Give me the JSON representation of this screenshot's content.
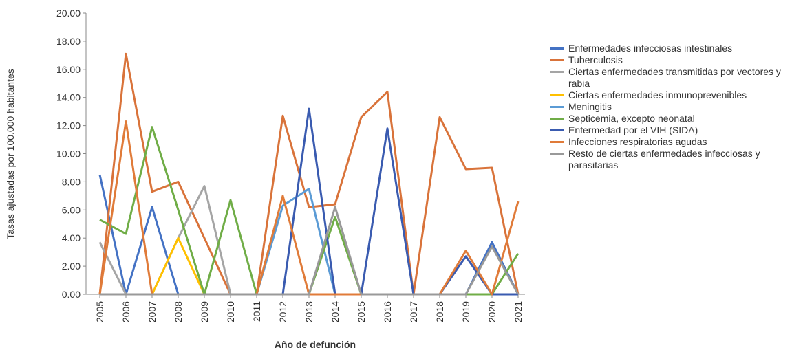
{
  "chart_data": {
    "type": "line",
    "x_label": "Año de defunción",
    "y_label": "Tasas ajustadas por 100.000 habitantes",
    "categories": [
      "2005",
      "2006",
      "2007",
      "2008",
      "2009",
      "2010",
      "2011",
      "2012",
      "2013",
      "2014",
      "2015",
      "2016",
      "2017",
      "2018",
      "2019",
      "2020",
      "2021"
    ],
    "ylim": [
      0,
      20
    ],
    "yticks": [
      {
        "value": 0,
        "label": "0.00"
      },
      {
        "value": 2,
        "label": "2.00"
      },
      {
        "value": 4,
        "label": "4.00"
      },
      {
        "value": 6,
        "label": "6.00"
      },
      {
        "value": 8,
        "label": "8.00"
      },
      {
        "value": 10,
        "label": "10.00"
      },
      {
        "value": 12,
        "label": "12.00"
      },
      {
        "value": 14,
        "label": "14.00"
      },
      {
        "value": 16,
        "label": "16.00"
      },
      {
        "value": 18,
        "label": "18.00"
      },
      {
        "value": 20,
        "label": "20.00"
      }
    ],
    "series": [
      {
        "name": "Enfermedades infecciosas intestinales",
        "color": "#4472c4",
        "values": [
          8.5,
          0,
          6.2,
          0,
          0,
          0,
          0,
          0,
          0,
          0,
          0,
          0,
          0,
          0,
          0,
          3.7,
          0
        ]
      },
      {
        "name": "Tuberculosis",
        "color": "#d9733a",
        "values": [
          0,
          17.1,
          7.3,
          8.0,
          4.0,
          0,
          0,
          12.7,
          6.2,
          6.4,
          12.6,
          14.4,
          0,
          12.6,
          8.9,
          9.0,
          0
        ]
      },
      {
        "name": "Ciertas enfermedades transmitidas por vectores y rabia",
        "color": "#a5a5a5",
        "values": [
          3.7,
          0,
          0,
          4.0,
          7.7,
          0,
          0,
          0,
          0,
          0,
          0,
          0,
          0,
          0,
          0,
          0,
          0
        ]
      },
      {
        "name": "Ciertas enfermedades inmunoprevenibles",
        "color": "#ffc000",
        "values": [
          0,
          0,
          0,
          4.0,
          0,
          0,
          0,
          0,
          0,
          0,
          0,
          0,
          0,
          0,
          0,
          0,
          0
        ]
      },
      {
        "name": "Meningitis",
        "color": "#5b9bd5",
        "values": [
          0,
          0,
          0,
          0,
          0,
          0,
          0,
          6.3,
          7.5,
          0,
          0,
          0,
          0,
          0,
          0,
          0,
          0
        ]
      },
      {
        "name": "Septicemia, excepto neonatal",
        "color": "#70ad47",
        "values": [
          5.3,
          4.3,
          11.9,
          6.0,
          0,
          6.7,
          0,
          0,
          0,
          5.5,
          0,
          0,
          0,
          0,
          0,
          0,
          2.9
        ]
      },
      {
        "name": "Enfermedad por el VIH (SIDA)",
        "color": "#3a5bb0",
        "values": [
          0,
          0,
          0,
          0,
          0,
          0,
          0,
          0,
          13.2,
          0,
          0,
          11.8,
          0,
          0,
          2.7,
          0,
          0
        ]
      },
      {
        "name": "Infecciones respiratorias agudas",
        "color": "#e07b39",
        "values": [
          0,
          12.3,
          0,
          0,
          0,
          0,
          0,
          7.0,
          0,
          0,
          0,
          0,
          0,
          0,
          3.1,
          0,
          6.6
        ]
      },
      {
        "name": "Resto de ciertas enfermedades infecciosas y parasitarias",
        "color": "#999999",
        "values": [
          0,
          0,
          0,
          0,
          0,
          0,
          0,
          0,
          0,
          6.2,
          0,
          0,
          0,
          0,
          0,
          3.4,
          0
        ]
      }
    ]
  }
}
